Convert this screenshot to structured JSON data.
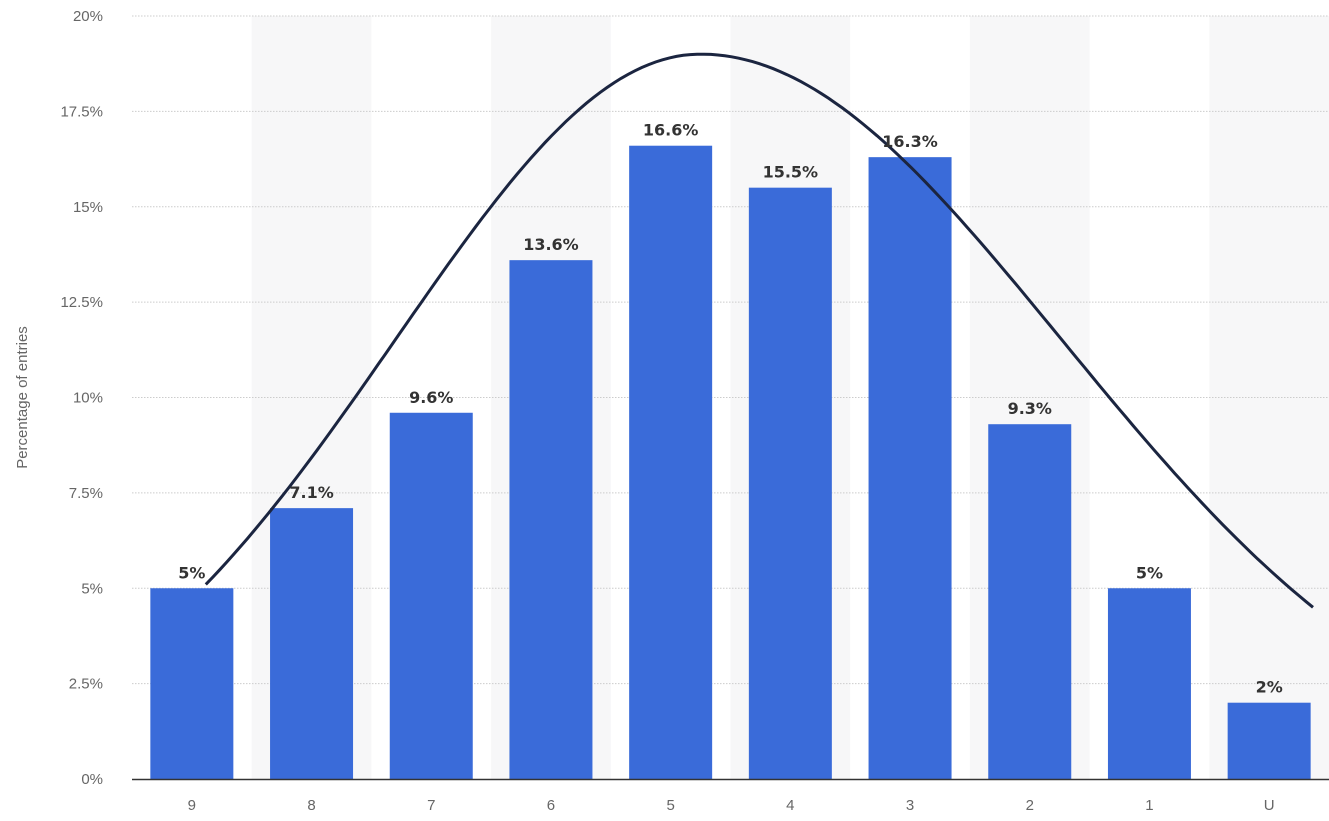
{
  "chart_data": {
    "type": "bar",
    "categories": [
      "9",
      "8",
      "7",
      "6",
      "5",
      "4",
      "3",
      "2",
      "1",
      "U"
    ],
    "values": [
      5,
      7.1,
      9.6,
      13.6,
      16.6,
      15.5,
      16.3,
      9.3,
      5,
      2
    ],
    "data_labels": [
      "5%",
      "7.1%",
      "9.6%",
      "13.6%",
      "16.6%",
      "15.5%",
      "16.3%",
      "9.3%",
      "5%",
      "2%"
    ],
    "ylabel": "Percentage of entries",
    "ylim": [
      0,
      20
    ],
    "yticks": [
      0,
      2.5,
      5,
      7.5,
      10,
      12.5,
      15,
      17.5,
      20
    ],
    "ytick_labels": [
      "0%",
      "2.5%",
      "5%",
      "7.5%",
      "10%",
      "12.5%",
      "15%",
      "17.5%",
      "20%"
    ],
    "grid": true,
    "overlay_curve": {
      "type": "bell-curve",
      "peak_value": 19,
      "start_value": 5.1,
      "end_value": 4.5
    },
    "colors": {
      "bar": "#3a6bd9",
      "curve": "#1b2540",
      "band": "#f7f7f8",
      "grid": "#cccccc",
      "axis": "#333333"
    }
  }
}
